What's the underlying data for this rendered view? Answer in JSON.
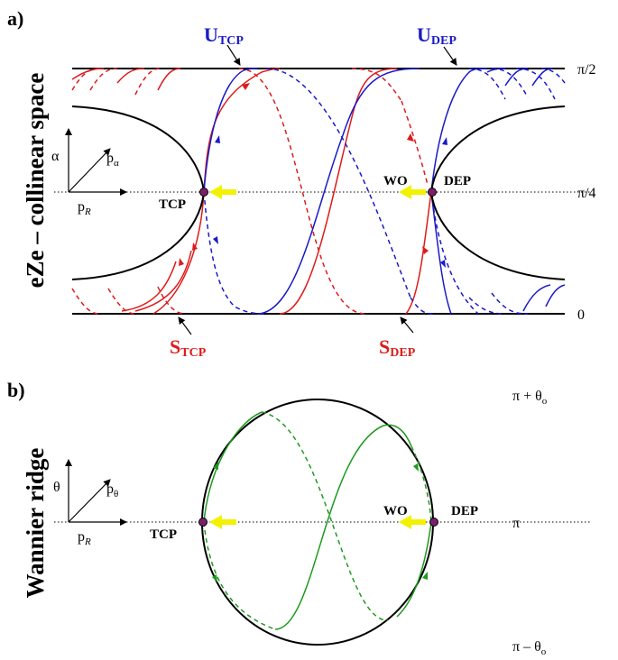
{
  "panel_a": {
    "tag": "a)",
    "side_title": "eZe – collinear space",
    "axis_alpha": "α",
    "axis_p": "p",
    "axis_p_alpha_sub": "α",
    "axis_pR_sub": "R",
    "tick_top": "π/2",
    "tick_mid": "π/4",
    "tick_bottom": "0",
    "tcp": "TCP",
    "dep": "DEP",
    "wo": "WO",
    "u_letter": "U",
    "s_letter": "S",
    "u_tcp_sub": "TCP",
    "u_dep_sub": "DEP",
    "s_tcp_sub": "TCP",
    "s_dep_sub": "DEP"
  },
  "panel_b": {
    "tag": "b)",
    "side_title": "Wannier ridge",
    "axis_theta": "θ",
    "axis_p": "p",
    "axis_p_theta_sub": "θ",
    "axis_pR_sub": "R",
    "tick_top_pre": "π + θ",
    "tick_top_sub": "o",
    "tick_mid": "π",
    "tick_bottom_pre": "π – θ",
    "tick_bottom_sub": "o",
    "tcp": "TCP",
    "dep": "DEP",
    "wo": "WO"
  },
  "colors": {
    "red": "#dd1b1b",
    "blue": "#1a1ac8",
    "green": "#1e9a1e",
    "yellow": "#f2f200",
    "black": "#000000",
    "point": "#7a1f6a"
  }
}
